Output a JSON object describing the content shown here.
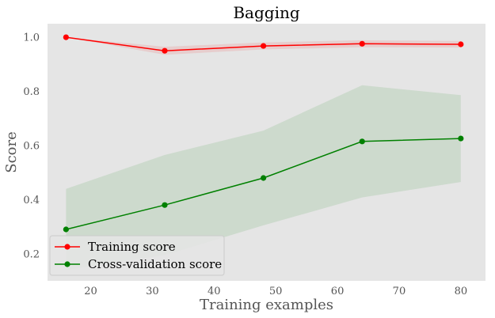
{
  "chart_data": {
    "type": "line",
    "title": "Bagging",
    "xlabel": "Training examples",
    "ylabel": "Score",
    "xlim": [
      13,
      84
    ],
    "ylim": [
      0.1,
      1.05
    ],
    "xticks": [
      20,
      30,
      40,
      50,
      60,
      70,
      80
    ],
    "yticks": [
      0.2,
      0.4,
      0.6,
      0.8,
      1.0
    ],
    "grid": false,
    "legend_position": "lower-left",
    "x": [
      16,
      32,
      48,
      64,
      80
    ],
    "series": [
      {
        "name": "Training score",
        "color": "#ff0000",
        "band_color": "#ff0000",
        "values": [
          1.0,
          0.95,
          0.968,
          0.976,
          0.974
        ],
        "lower": [
          1.0,
          0.935,
          0.955,
          0.963,
          0.962
        ],
        "upper": [
          1.0,
          0.965,
          0.981,
          0.989,
          0.986
        ]
      },
      {
        "name": "Cross-validation score",
        "color": "#008000",
        "band_color": "#008000",
        "values": [
          0.29,
          0.38,
          0.48,
          0.615,
          0.626
        ],
        "lower": [
          0.14,
          0.195,
          0.305,
          0.408,
          0.465
        ],
        "upper": [
          0.44,
          0.565,
          0.655,
          0.823,
          0.786
        ]
      }
    ]
  }
}
